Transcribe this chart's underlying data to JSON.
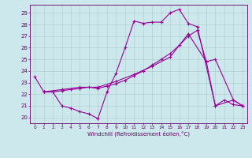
{
  "xlabel": "Windchill (Refroidissement éolien,°C)",
  "background_color": "#cce8ec",
  "grid_color": "#aacccc",
  "line_color": "#990099",
  "xlim": [
    -0.5,
    23.5
  ],
  "ylim": [
    19.5,
    29.7
  ],
  "yticks": [
    20,
    21,
    22,
    23,
    24,
    25,
    26,
    27,
    28,
    29
  ],
  "xticks": [
    0,
    1,
    2,
    3,
    4,
    5,
    6,
    7,
    8,
    9,
    10,
    11,
    12,
    13,
    14,
    15,
    16,
    17,
    18,
    19,
    20,
    21,
    22,
    23
  ],
  "line1_x": [
    0,
    1,
    2,
    3,
    4,
    5,
    6,
    7,
    8,
    9,
    10,
    11,
    12,
    13,
    14,
    15,
    16,
    17,
    18,
    20,
    21,
    22,
    23
  ],
  "line1_y": [
    23.5,
    22.2,
    22.2,
    21.0,
    20.8,
    20.5,
    20.3,
    19.9,
    22.2,
    23.8,
    26.0,
    28.3,
    28.1,
    28.2,
    28.2,
    29.0,
    29.3,
    28.1,
    27.8,
    21.0,
    21.5,
    21.1,
    21.0
  ],
  "line2_x": [
    1,
    2,
    3,
    4,
    5,
    6,
    7,
    8,
    9,
    10,
    11,
    12,
    13,
    14,
    15,
    16,
    17,
    18,
    19,
    20,
    22,
    23
  ],
  "line2_y": [
    22.2,
    22.2,
    22.3,
    22.4,
    22.5,
    22.6,
    22.5,
    22.7,
    22.9,
    23.2,
    23.6,
    24.0,
    24.5,
    25.0,
    25.5,
    26.2,
    27.0,
    27.5,
    24.8,
    21.0,
    21.5,
    21.0
  ],
  "line3_x": [
    1,
    3,
    5,
    7,
    9,
    11,
    13,
    15,
    17,
    19,
    20,
    22,
    23
  ],
  "line3_y": [
    22.2,
    22.4,
    22.6,
    22.6,
    23.1,
    23.7,
    24.4,
    25.2,
    27.2,
    24.8,
    25.0,
    21.5,
    21.0
  ]
}
